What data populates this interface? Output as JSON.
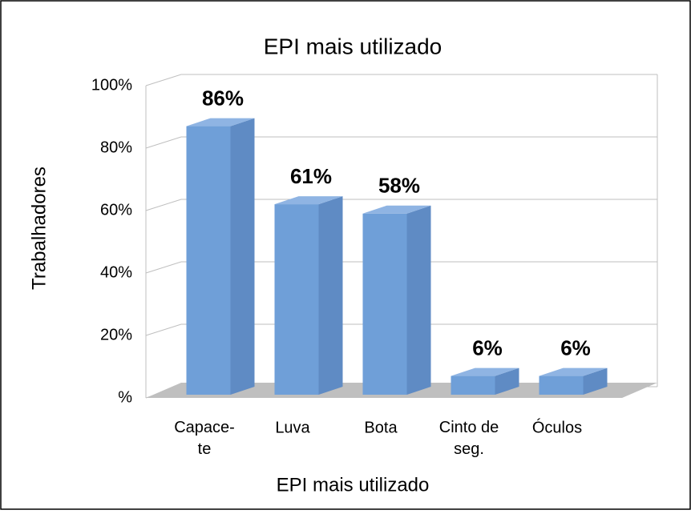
{
  "chart_data": {
    "type": "bar3d",
    "title": "EPI mais utilizado",
    "x_label": "EPI mais utilizado",
    "y_label": "Trabalhadores",
    "categories": [
      "Capace-\nte",
      "Luva",
      "Bota",
      "Cinto de\nseg.",
      "Óculos"
    ],
    "values": [
      86,
      61,
      58,
      6,
      6
    ],
    "value_labels": [
      "86%",
      "61%",
      "58%",
      "6%",
      "6%"
    ],
    "color": "#6f9fd8",
    "ylim": [
      0,
      100
    ],
    "yticks": [
      {
        "value": 0,
        "label": "%"
      },
      {
        "value": 20,
        "label": "20%"
      },
      {
        "value": 40,
        "label": "40%"
      },
      {
        "value": 60,
        "label": "60%"
      },
      {
        "value": 80,
        "label": "80%"
      },
      {
        "value": 100,
        "label": "100%"
      }
    ],
    "grid": true
  }
}
